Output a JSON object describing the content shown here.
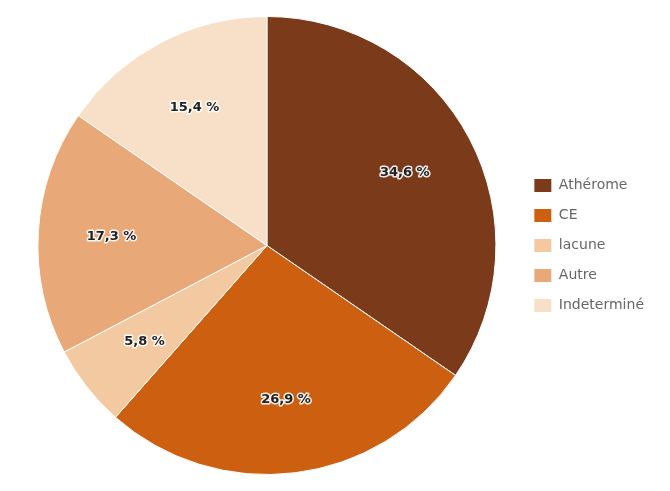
{
  "chart_data": {
    "type": "pie",
    "categories": [
      "Athérome",
      "CE",
      "lacune",
      "Autre",
      "Indeterminé"
    ],
    "values": [
      34.6,
      26.9,
      5.8,
      17.3,
      15.4
    ],
    "value_labels": [
      "34,6 %",
      "26,9 %",
      "5,8 %",
      "17,3 %",
      "15,4 %"
    ],
    "colors": [
      "#7B3A1A",
      "#CC6010",
      "#F2C9A0",
      "#E8A878",
      "#F8E0C8"
    ],
    "data_labels": true,
    "legend": "right"
  }
}
